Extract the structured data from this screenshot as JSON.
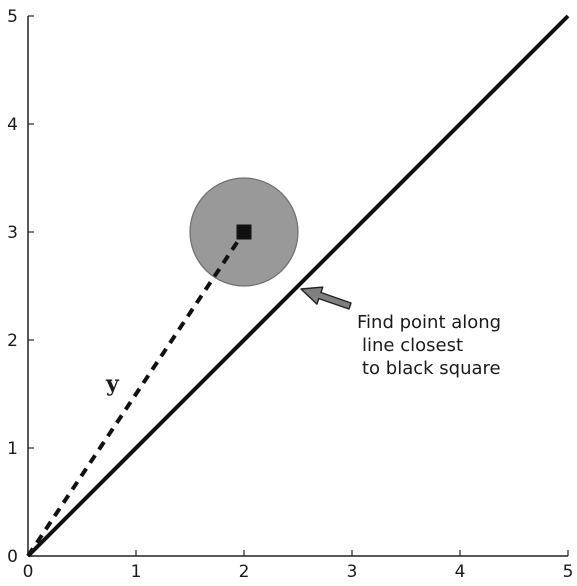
{
  "chart_data": {
    "type": "line",
    "title": "",
    "xlabel": "",
    "ylabel": "",
    "xlim": [
      0,
      5
    ],
    "ylim": [
      0,
      5
    ],
    "grid": false,
    "x_ticks": [
      "0",
      "1",
      "2",
      "3",
      "4",
      "5"
    ],
    "y_ticks": [
      "0",
      "1",
      "2",
      "3",
      "4",
      "5"
    ],
    "line": {
      "x": [
        0,
        5
      ],
      "y": [
        0,
        5
      ]
    },
    "point": {
      "x": 2,
      "y": 3,
      "marker": "square",
      "color": "#111111"
    },
    "circle": {
      "cx": 2,
      "cy": 3,
      "r": 0.5,
      "color": "#999999"
    },
    "dashed_segment": {
      "x": [
        0,
        2
      ],
      "y": [
        0,
        3
      ],
      "label": "y"
    },
    "closest_point": {
      "x": 2.5,
      "y": 2.5
    },
    "annotation": {
      "lines": [
        "Find point along",
        "line closest",
        "to black square"
      ],
      "arrow_color": "#808080"
    }
  }
}
